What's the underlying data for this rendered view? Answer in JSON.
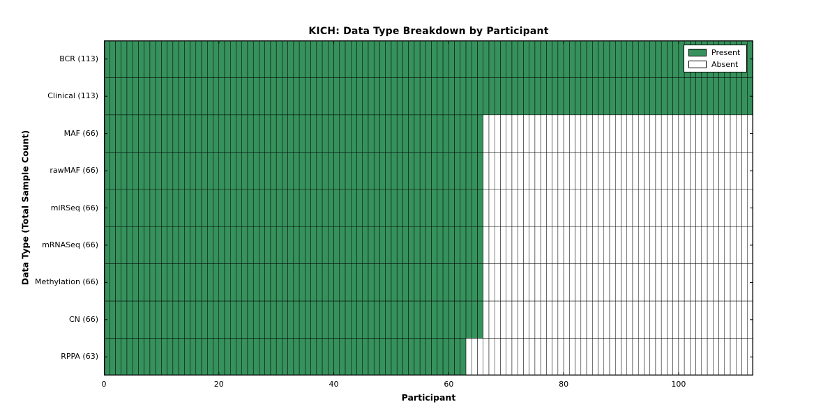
{
  "figure": {
    "background": "#ffffff"
  },
  "chart_data": {
    "type": "heatmap",
    "title": "KICH: Data Type Breakdown by Participant",
    "xlabel": "Participant",
    "ylabel": "Data Type (Total Sample Count)",
    "x_ticks": [
      0,
      20,
      40,
      60,
      80,
      100
    ],
    "x_range": [
      0,
      113
    ],
    "n_participants": 113,
    "rows": [
      {
        "name": "BCR",
        "label": "BCR (113)",
        "total_samples": 113,
        "present_count": 113
      },
      {
        "name": "Clinical",
        "label": "Clinical (113)",
        "total_samples": 113,
        "present_count": 113
      },
      {
        "name": "MAF",
        "label": "MAF (66)",
        "total_samples": 66,
        "present_count": 66
      },
      {
        "name": "rawMAF",
        "label": "rawMAF (66)",
        "total_samples": 66,
        "present_count": 66
      },
      {
        "name": "miRSeq",
        "label": "miRSeq (66)",
        "total_samples": 66,
        "present_count": 66
      },
      {
        "name": "mRNASeq",
        "label": "mRNASeq (66)",
        "total_samples": 66,
        "present_count": 66
      },
      {
        "name": "Methylation",
        "label": "Methylation (66)",
        "total_samples": 66,
        "present_count": 66
      },
      {
        "name": "CN",
        "label": "CN (66)",
        "total_samples": 66,
        "present_count": 66
      },
      {
        "name": "RPPA",
        "label": "RPPA (63)",
        "total_samples": 63,
        "present_count": 63
      }
    ],
    "legend": {
      "position": "upper right",
      "items": [
        {
          "label": "Present",
          "color": "#36915c"
        },
        {
          "label": "Absent",
          "color": "#ffffff"
        }
      ]
    },
    "colors": {
      "present": "#36915c",
      "absent": "#ffffff",
      "cell_edge": "#000000",
      "axes_edge": "#000000"
    },
    "grid": false
  }
}
